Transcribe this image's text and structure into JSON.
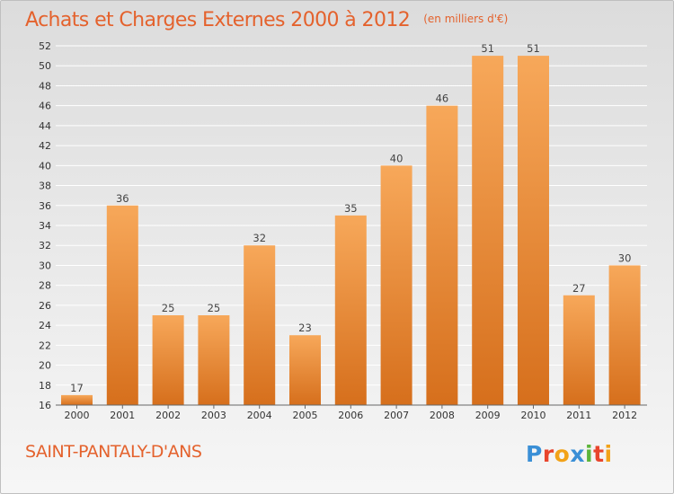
{
  "header": {
    "title": "Achats et Charges Externes 2000 à 2012",
    "unit": "(en milliers d'€)"
  },
  "footer": {
    "commune": "SAINT-PANTALY-D'ANS",
    "logo_text": "Proxiti",
    "logo_colors": [
      "#3a8fd6",
      "#e8452c",
      "#f2a218",
      "#3a8fd6",
      "#5db53a",
      "#e8452c",
      "#f2a218"
    ]
  },
  "colors": {
    "accent": "#e4622d",
    "bar_light": "#f7a85a",
    "bar_dark": "#d66f1c",
    "grid": "#ffffff",
    "axis_text": "#333333"
  },
  "chart_data": {
    "type": "bar",
    "categories": [
      "2000",
      "2001",
      "2002",
      "2003",
      "2004",
      "2005",
      "2006",
      "2007",
      "2008",
      "2009",
      "2010",
      "2011",
      "2012"
    ],
    "values": [
      17,
      36,
      25,
      25,
      32,
      23,
      35,
      40,
      46,
      51,
      51,
      27,
      30
    ],
    "title": "Achats et Charges Externes 2000 à 2012",
    "ylim": [
      16,
      52
    ],
    "yticks": [
      16,
      18,
      20,
      22,
      24,
      26,
      28,
      30,
      32,
      34,
      36,
      38,
      40,
      42,
      44,
      46,
      48,
      50,
      52
    ],
    "grid": true,
    "data_labels": true
  }
}
